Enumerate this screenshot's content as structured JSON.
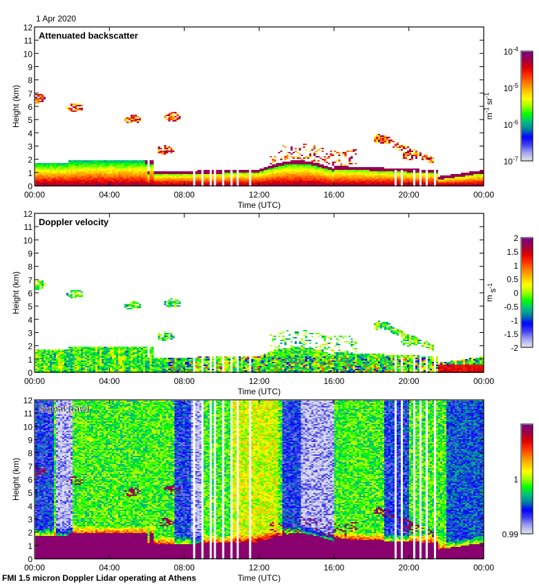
{
  "header": {
    "date": "1 Apr 2020"
  },
  "footer": {
    "caption": "FMI 1.5 micron Doppler Lidar operating at Athens"
  },
  "chart_data": [
    {
      "type": "heatmap",
      "id": "backscatter",
      "title": "Attenuated backscatter",
      "xlabel": "Time (UTC)",
      "ylabel": "Height (km)",
      "xlim": [
        "00:00",
        "00:00"
      ],
      "ylim": [
        0,
        12
      ],
      "xticks": [
        "00:00",
        "04:00",
        "08:00",
        "12:00",
        "16:00",
        "20:00",
        "00:00"
      ],
      "yticks": [
        0,
        1,
        2,
        3,
        4,
        5,
        6,
        7,
        8,
        9,
        10,
        11,
        12
      ],
      "colorbar": {
        "label_main": "m",
        "label_parts": [
          "m",
          "-1",
          " sr",
          "-1"
        ],
        "scale": "log",
        "range": [
          1e-07,
          0.0001
        ],
        "tick_labels": [
          {
            "base": "10",
            "exp": "-4",
            "value": 0.0001
          },
          {
            "base": "10",
            "exp": "-5",
            "value": 1e-05
          },
          {
            "base": "10",
            "exp": "-6",
            "value": 1e-06
          },
          {
            "base": "10",
            "exp": "-7",
            "value": 1e-07
          }
        ]
      },
      "features": {
        "boundary_layer_top_km": [
          1.8,
          1.9,
          1.9,
          1.1,
          1.2,
          1.5,
          1.2
        ],
        "cloud_patches": [
          {
            "time_h": 0.1,
            "height_km": 6.6
          },
          {
            "time_h": 2.1,
            "height_km": 5.9
          },
          {
            "time_h": 5.2,
            "height_km": 5.0
          },
          {
            "time_h": 7.3,
            "height_km": 5.2
          },
          {
            "time_h": 6.9,
            "height_km": 2.7
          },
          {
            "time_h": 18.5,
            "height_km": 3.5
          },
          {
            "time_h": 20.0,
            "height_km": 2.3
          }
        ]
      }
    },
    {
      "type": "heatmap",
      "id": "velocity",
      "title": "Doppler velocity",
      "xlabel": "Time (UTC)",
      "ylabel": "Height (km)",
      "xlim": [
        "00:00",
        "00:00"
      ],
      "ylim": [
        0,
        12
      ],
      "xticks": [
        "00:00",
        "04:00",
        "08:00",
        "12:00",
        "16:00",
        "20:00",
        "00:00"
      ],
      "yticks": [
        0,
        1,
        2,
        3,
        4,
        5,
        6,
        7,
        8,
        9,
        10,
        11,
        12
      ],
      "colorbar": {
        "label_parts": [
          "m",
          " s",
          "-1"
        ],
        "scale": "linear",
        "range": [
          -2,
          2
        ],
        "tick_labels": [
          "2",
          "1.5",
          "1",
          "0.5",
          "0",
          "-0.5",
          "-1",
          "-1.5",
          "-2"
        ]
      }
    },
    {
      "type": "heatmap",
      "id": "signal",
      "title": "Signal (raw)",
      "xlabel": "Time (UTC)",
      "ylabel": "Height (km)",
      "xlim": [
        "00:00",
        "00:00"
      ],
      "ylim": [
        0,
        12
      ],
      "xticks": [
        "00:00",
        "04:00",
        "08:00",
        "12:00",
        "16:00",
        "20:00",
        "00:00"
      ],
      "yticks": [
        0,
        1,
        2,
        3,
        4,
        5,
        6,
        7,
        8,
        9,
        10,
        11,
        12
      ],
      "colorbar": {
        "label_parts": [],
        "scale": "linear",
        "range": [
          0.99,
          1.01
        ],
        "tick_labels": [
          "1",
          "0.99"
        ]
      }
    }
  ],
  "colors": {
    "colormap": [
      "#dcdcec",
      "#a0a0f0",
      "#4040f0",
      "#0000ff",
      "#0080a0",
      "#00c080",
      "#00ff00",
      "#a0ff00",
      "#ffff00",
      "#ffc000",
      "#ff8000",
      "#ff3000",
      "#e00000",
      "#a00040",
      "#800080"
    ],
    "background": "#ffffff",
    "axis": "#000000"
  }
}
